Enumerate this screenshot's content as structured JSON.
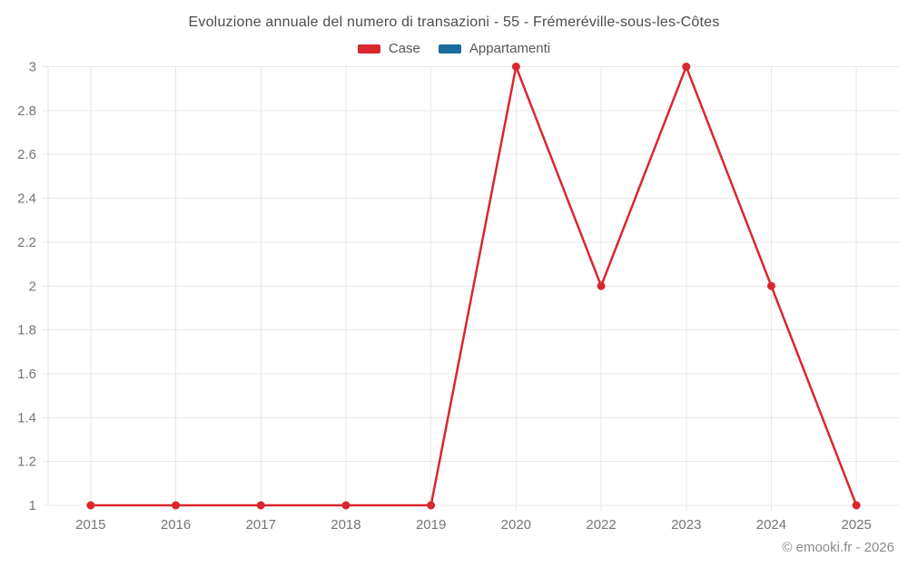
{
  "chart_data": {
    "type": "line",
    "title": "Evoluzione annuale del numero di transazioni - 55 - Frémeréville-sous-les-Côtes",
    "categories": [
      "2015",
      "2016",
      "2017",
      "2018",
      "2019",
      "2020",
      "2022",
      "2023",
      "2024",
      "2025"
    ],
    "series": [
      {
        "name": "Case",
        "color": "#d9272e",
        "values": [
          1,
          1,
          1,
          1,
          1,
          3,
          2,
          3,
          2,
          1
        ]
      },
      {
        "name": "Appartamenti",
        "color": "#1a6d9e",
        "values": []
      }
    ],
    "xlabel": "",
    "ylabel": "",
    "ylim": [
      1,
      3
    ],
    "yticks": [
      "1",
      "1.2",
      "1.4",
      "1.6",
      "1.8",
      "2",
      "2.2",
      "2.4",
      "2.6",
      "2.8",
      "3"
    ],
    "grid": true,
    "legend_position": "top",
    "marker": "circle"
  },
  "footer": {
    "credit": "© emooki.fr - 2026"
  },
  "colors": {
    "grid": "#e7e7e7",
    "axis_text": "#757575",
    "title_text": "#4c4c4c",
    "legend_text": "#565656",
    "footer_text": "#8a8a8a"
  }
}
